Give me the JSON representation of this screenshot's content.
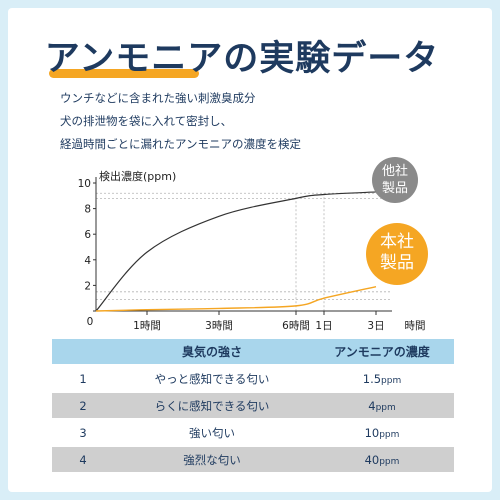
{
  "title": "アンモニアの実験データ",
  "desc": {
    "line1": "ウンチなどに含まれた強い刺激臭成分",
    "line2": "犬の排泄物を袋に入れて密封し、",
    "line3": "経過時間ごとに漏れたアンモニアの濃度を検定"
  },
  "badges": {
    "other_line1": "他社",
    "other_line2": "製品",
    "ours_line1": "本社",
    "ours_line2": "製品"
  },
  "colors": {
    "accent": "#f5a623",
    "navy": "#1e3a5f",
    "other_line": "#333333",
    "ours_line": "#f5a623",
    "table_header": "#a9d6ec"
  },
  "chart_data": {
    "type": "line",
    "ylabel": "検出濃度(ppm)",
    "xlabel": "時間",
    "y_ticks": [
      "0",
      "2",
      "4",
      "6",
      "8",
      "10"
    ],
    "x_ticks": [
      "1時間",
      "3時間",
      "6時間",
      "1日",
      "3日"
    ],
    "ylim": [
      0,
      10
    ],
    "reference_lines": [
      8.8,
      9.2,
      0.9,
      1.5
    ],
    "series": [
      {
        "name": "他社製品",
        "x": [
          "0",
          "1時間",
          "3時間",
          "6時間",
          "1日",
          "3日"
        ],
        "values": [
          0.0,
          4.6,
          7.4,
          8.8,
          9.1,
          9.3
        ]
      },
      {
        "name": "本社製品",
        "x": [
          "0",
          "1時間",
          "3時間",
          "6時間",
          "1日",
          "3日"
        ],
        "values": [
          0.0,
          0.1,
          0.2,
          0.4,
          1.0,
          1.9
        ]
      }
    ]
  },
  "table": {
    "headers": [
      "",
      "臭気の強さ",
      "アンモニアの濃度"
    ],
    "rows": [
      {
        "level": "1",
        "strength": "やっと感知できる匂い",
        "value": "1.5",
        "unit": "ppm"
      },
      {
        "level": "2",
        "strength": "らくに感知できる匂い",
        "value": "4",
        "unit": "ppm"
      },
      {
        "level": "3",
        "strength": "強い匂い",
        "value": "10",
        "unit": "ppm"
      },
      {
        "level": "4",
        "strength": "強烈な匂い",
        "value": "40",
        "unit": "ppm"
      }
    ]
  }
}
